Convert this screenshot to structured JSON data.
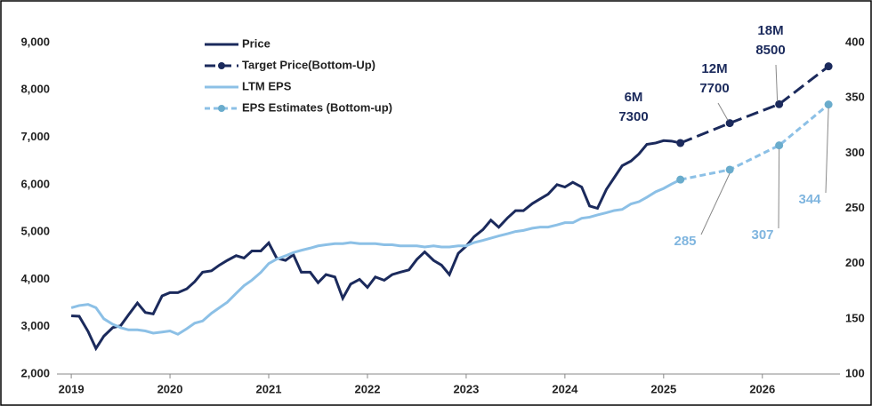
{
  "chart_data": {
    "type": "line",
    "xlim": [
      2018.9,
      2026.75
    ],
    "xticks": [
      2019,
      2020,
      2021,
      2022,
      2023,
      2024,
      2025,
      2026
    ],
    "ylim": [
      2000,
      9000
    ],
    "yticks": [
      {
        "value": 2000,
        "label": "2,000"
      },
      {
        "value": 3000,
        "label": "3,000"
      },
      {
        "value": 4000,
        "label": "4,000"
      },
      {
        "value": 5000,
        "label": "5,000"
      },
      {
        "value": 6000,
        "label": "6,000"
      },
      {
        "value": 7000,
        "label": "7,000"
      },
      {
        "value": 8000,
        "label": "8,000"
      },
      {
        "value": 9000,
        "label": "9,000"
      }
    ],
    "y2lim": [
      100,
      400
    ],
    "y2ticks": [
      100,
      150,
      200,
      250,
      300,
      350,
      400
    ],
    "series": [
      {
        "name": "Price",
        "color": "#1b2a5c",
        "style": "solid",
        "x": [
          2019.0,
          2019.08,
          2019.17,
          2019.25,
          2019.33,
          2019.42,
          2019.5,
          2019.58,
          2019.67,
          2019.75,
          2019.83,
          2019.92,
          2020.0,
          2020.08,
          2020.17,
          2020.25,
          2020.33,
          2020.42,
          2020.5,
          2020.58,
          2020.67,
          2020.75,
          2020.83,
          2020.92,
          2021.0,
          2021.08,
          2021.17,
          2021.25,
          2021.33,
          2021.42,
          2021.5,
          2021.58,
          2021.67,
          2021.75,
          2021.83,
          2021.92,
          2022.0,
          2022.08,
          2022.17,
          2022.25,
          2022.33,
          2022.42,
          2022.5,
          2022.58,
          2022.67,
          2022.75,
          2022.83,
          2022.92,
          2023.0,
          2023.08,
          2023.17,
          2023.25,
          2023.33,
          2023.42,
          2023.5,
          2023.58,
          2023.67,
          2023.75,
          2023.83,
          2023.92,
          2024.0,
          2024.08,
          2024.17,
          2024.25,
          2024.33,
          2024.42,
          2024.5,
          2024.58,
          2024.67,
          2024.75,
          2024.83,
          2024.92,
          2025.0,
          2025.08,
          2025.17
        ],
        "values": [
          3230,
          3220,
          2900,
          2540,
          2800,
          2980,
          3020,
          3250,
          3500,
          3300,
          3270,
          3650,
          3720,
          3720,
          3800,
          3950,
          4150,
          4180,
          4300,
          4400,
          4500,
          4450,
          4600,
          4600,
          4770,
          4450,
          4400,
          4520,
          4150,
          4150,
          3930,
          4100,
          4050,
          3600,
          3900,
          4000,
          3830,
          4050,
          3980,
          4100,
          4150,
          4200,
          4420,
          4580,
          4400,
          4300,
          4100,
          4550,
          4700,
          4900,
          5050,
          5250,
          5100,
          5300,
          5450,
          5450,
          5600,
          5700,
          5800,
          6000,
          5950,
          6050,
          5950,
          5550,
          5500,
          5900,
          6150,
          6400,
          6500,
          6650,
          6850,
          6880,
          6930,
          6920,
          6880
        ]
      },
      {
        "name": "Target Price(Bottom-Up)",
        "color": "#1b2a5c",
        "style": "dashed",
        "markers": true,
        "x": [
          2025.17,
          2025.67,
          2026.17,
          2026.67
        ],
        "values": [
          6880,
          7300,
          7700,
          8500
        ]
      },
      {
        "name": "LTM EPS",
        "color": "#8cc0e6",
        "style": "solid",
        "axis": "y2",
        "x": [
          2019.0,
          2019.08,
          2019.17,
          2019.25,
          2019.33,
          2019.42,
          2019.5,
          2019.58,
          2019.67,
          2019.75,
          2019.83,
          2019.92,
          2020.0,
          2020.08,
          2020.17,
          2020.25,
          2020.33,
          2020.42,
          2020.5,
          2020.58,
          2020.67,
          2020.75,
          2020.83,
          2020.92,
          2021.0,
          2021.08,
          2021.17,
          2021.25,
          2021.33,
          2021.42,
          2021.5,
          2021.58,
          2021.67,
          2021.75,
          2021.83,
          2021.92,
          2022.0,
          2022.08,
          2022.17,
          2022.25,
          2022.33,
          2022.42,
          2022.5,
          2022.58,
          2022.67,
          2022.75,
          2022.83,
          2022.92,
          2023.0,
          2023.08,
          2023.17,
          2023.25,
          2023.33,
          2023.42,
          2023.5,
          2023.58,
          2023.67,
          2023.75,
          2023.83,
          2023.92,
          2024.0,
          2024.08,
          2024.17,
          2024.25,
          2024.33,
          2024.42,
          2024.5,
          2024.58,
          2024.67,
          2024.75,
          2024.83,
          2024.92,
          2025.0,
          2025.08,
          2025.17
        ],
        "values": [
          160,
          162,
          163,
          160,
          150,
          145,
          142,
          140,
          140,
          139,
          137,
          138,
          139,
          136,
          141,
          146,
          148,
          155,
          160,
          165,
          173,
          180,
          185,
          192,
          200,
          204,
          207,
          210,
          212,
          214,
          216,
          217,
          218,
          218,
          219,
          218,
          218,
          218,
          217,
          217,
          216,
          216,
          216,
          215,
          216,
          215,
          215,
          216,
          216,
          219,
          221,
          223,
          225,
          227,
          229,
          230,
          232,
          233,
          233,
          235,
          237,
          237,
          241,
          242,
          244,
          246,
          248,
          249,
          254,
          256,
          260,
          265,
          268,
          272,
          276
        ]
      },
      {
        "name": "EPS Estimates (Bottom-up)",
        "color": "#8cc0e6",
        "marker_color": "#6aaccc",
        "style": "dashed",
        "markers": true,
        "axis": "y2",
        "x": [
          2025.17,
          2025.67,
          2026.17,
          2026.67
        ],
        "values": [
          276,
          285,
          307,
          344
        ]
      }
    ],
    "annotations": [
      [
        "6M",
        "7300"
      ],
      [
        "12M",
        "7700"
      ],
      [
        "18M",
        "8500"
      ]
    ]
  }
}
